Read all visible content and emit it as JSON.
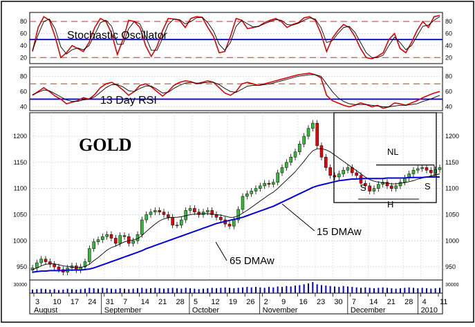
{
  "chart_data": [
    {
      "type": "line",
      "panel": "stochastic",
      "title": "Stochastic Oscillator",
      "ylim": [
        10,
        95
      ],
      "y_ticks": [
        "80",
        "60",
        "40",
        "20"
      ],
      "reference_lines": [
        80,
        20
      ],
      "center_line": 50,
      "grid": true,
      "series": [
        {
          "color": "#dd0000",
          "values": [
            30,
            70,
            88,
            82,
            55,
            20,
            28,
            40,
            35,
            30,
            45,
            70,
            85,
            80,
            60,
            25,
            50,
            82,
            80,
            70,
            40,
            22,
            38,
            65,
            85,
            84,
            82,
            70,
            85,
            88,
            87,
            70,
            55,
            28,
            30,
            55,
            85,
            82,
            68,
            70,
            72,
            78,
            82,
            85,
            80,
            70,
            75,
            78,
            86,
            88,
            82,
            60,
            30,
            52,
            65,
            75,
            70,
            55,
            35,
            20,
            18,
            22,
            28,
            50,
            60,
            35,
            28,
            45,
            65,
            80,
            70,
            88,
            90
          ]
        },
        {
          "color": "#000000",
          "values": [
            32,
            58,
            80,
            84,
            68,
            38,
            26,
            33,
            36,
            33,
            40,
            58,
            78,
            82,
            72,
            42,
            42,
            68,
            80,
            76,
            55,
            32,
            32,
            52,
            75,
            84,
            83,
            76,
            80,
            86,
            87,
            78,
            64,
            42,
            32,
            45,
            72,
            82,
            76,
            71,
            72,
            76,
            80,
            83,
            82,
            75,
            74,
            77,
            82,
            86,
            84,
            70,
            45,
            48,
            60,
            70,
            72,
            62,
            45,
            28,
            20,
            20,
            24,
            40,
            54,
            45,
            33,
            40,
            56,
            72,
            74,
            82,
            88
          ]
        }
      ]
    },
    {
      "type": "line",
      "panel": "rsi",
      "title": "13 Day RSI",
      "ylim": [
        35,
        92
      ],
      "y_ticks": [
        "80",
        "60",
        "40"
      ],
      "reference_lines": [
        70
      ],
      "center_line": 50,
      "grid": true,
      "series": [
        {
          "color": "#dd0000",
          "values": [
            55,
            60,
            65,
            60,
            54,
            50,
            44,
            46,
            48,
            52,
            50,
            56,
            65,
            70,
            72,
            68,
            62,
            55,
            60,
            68,
            70,
            66,
            60,
            54,
            60,
            68,
            72,
            74,
            73,
            70,
            72,
            74,
            72,
            65,
            58,
            55,
            60,
            70,
            72,
            70,
            68,
            70,
            72,
            74,
            76,
            78,
            80,
            82,
            83,
            84,
            82,
            78,
            55,
            48,
            45,
            42,
            40,
            42,
            45,
            43,
            40,
            42,
            38,
            40,
            45,
            44,
            42,
            45,
            48,
            52,
            55,
            58,
            60
          ]
        },
        {
          "color": "#000000",
          "values": [
            56,
            59,
            62,
            61,
            57,
            53,
            49,
            47,
            47,
            49,
            50,
            53,
            59,
            65,
            69,
            69,
            66,
            61,
            60,
            64,
            67,
            67,
            63,
            58,
            59,
            64,
            68,
            71,
            72,
            71,
            71,
            72,
            72,
            69,
            64,
            60,
            59,
            63,
            67,
            68,
            68,
            69,
            70,
            72,
            74,
            76,
            78,
            80,
            81,
            82,
            82,
            80,
            70,
            60,
            52,
            47,
            44,
            43,
            43,
            43,
            42,
            41,
            40,
            40,
            41,
            42,
            42,
            43,
            44,
            47,
            49,
            52,
            55
          ]
        }
      ]
    },
    {
      "type": "candlestick",
      "panel": "price",
      "title": "GOLD",
      "ylim": [
        925,
        1245
      ],
      "y_ticks": [
        "1200",
        "1150",
        "1100",
        "1050",
        "1000",
        "950"
      ],
      "grid": true,
      "x_ticks": [
        "3",
        "10",
        "17",
        "24",
        "31",
        "7",
        "14",
        "21",
        "28",
        "5",
        "12",
        "19",
        "26",
        "2",
        "9",
        "16",
        "23",
        "30",
        "7",
        "14",
        "21",
        "28",
        "4",
        "11"
      ],
      "months": [
        "August",
        "September",
        "October",
        "November",
        "December",
        "2010"
      ],
      "close": [
        948,
        958,
        965,
        960,
        955,
        950,
        945,
        940,
        948,
        952,
        944,
        950,
        960,
        985,
        998,
        1002,
        1008,
        1012,
        1005,
        995,
        1010,
        1008,
        995,
        1000,
        1012,
        1040,
        1050,
        1055,
        1058,
        1055,
        1050,
        1045,
        1030,
        1030,
        1040,
        1058,
        1062,
        1055,
        1050,
        1055,
        1058,
        1050,
        1045,
        1040,
        1032,
        1028,
        1040,
        1060,
        1085,
        1090,
        1095,
        1100,
        1105,
        1110,
        1108,
        1112,
        1130,
        1140,
        1150,
        1160,
        1170,
        1185,
        1200,
        1215,
        1225,
        1182,
        1160,
        1140,
        1125,
        1122,
        1128,
        1135,
        1140,
        1130,
        1125,
        1110,
        1105,
        1095,
        1100,
        1108,
        1112,
        1105,
        1100,
        1105,
        1112,
        1120,
        1128,
        1135,
        1138,
        1140,
        1135,
        1130,
        1136,
        1140
      ],
      "sma15": [
        945,
        948,
        952,
        955,
        956,
        956,
        954,
        952,
        951,
        950,
        949,
        949,
        951,
        955,
        962,
        968,
        975,
        982,
        987,
        990,
        994,
        998,
        1000,
        1002,
        1004,
        1010,
        1018,
        1025,
        1032,
        1038,
        1042,
        1044,
        1045,
        1045,
        1046,
        1048,
        1050,
        1051,
        1051,
        1052,
        1052,
        1051,
        1050,
        1049,
        1047,
        1045,
        1045,
        1048,
        1053,
        1058,
        1064,
        1070,
        1076,
        1082,
        1088,
        1093,
        1100,
        1108,
        1116,
        1124,
        1132,
        1142,
        1152,
        1163,
        1172,
        1176,
        1176,
        1174,
        1170,
        1164,
        1158,
        1152,
        1146,
        1140,
        1134,
        1128,
        1122,
        1117,
        1114,
        1112,
        1111,
        1110,
        1109,
        1109,
        1110,
        1111,
        1113,
        1115,
        1118,
        1120,
        1122,
        1124,
        1126,
        1128
      ],
      "sma65": [
        940,
        941,
        942,
        942,
        943,
        943,
        943,
        943,
        944,
        944,
        944,
        944,
        945,
        946,
        948,
        951,
        954,
        957,
        960,
        963,
        966,
        969,
        972,
        975,
        978,
        981,
        985,
        988,
        991,
        994,
        997,
        1000,
        1003,
        1006,
        1009,
        1012,
        1015,
        1018,
        1021,
        1024,
        1027,
        1030,
        1033,
        1035,
        1037,
        1039,
        1041,
        1043,
        1045,
        1048,
        1051,
        1054,
        1057,
        1060,
        1063,
        1066,
        1070,
        1074,
        1078,
        1082,
        1086,
        1090,
        1094,
        1098,
        1102,
        1105,
        1107,
        1109,
        1111,
        1113,
        1115,
        1116,
        1117,
        1118,
        1118,
        1119,
        1119,
        1119,
        1119,
        1119,
        1119,
        1120,
        1120,
        1120,
        1120,
        1120,
        1121,
        1121,
        1121,
        1121,
        1122,
        1122,
        1122,
        1122
      ],
      "annotations": [
        "15 DMAw",
        "65 DMAw",
        "NL",
        "S",
        "H",
        "S"
      ],
      "neckline": 1145
    },
    {
      "type": "bar",
      "panel": "volume",
      "y_ticks": [
        "30000"
      ],
      "values": [
        8,
        9,
        10,
        9,
        8,
        9,
        7,
        8,
        10,
        9,
        8,
        9,
        10,
        12,
        11,
        10,
        12,
        11,
        10,
        9,
        11,
        10,
        9,
        10,
        11,
        12,
        10,
        11,
        12,
        11,
        10,
        11,
        12,
        11,
        10,
        12,
        11,
        10,
        9,
        10,
        11,
        12,
        11,
        12,
        13,
        12,
        11,
        12,
        13,
        14,
        13,
        14,
        13,
        12,
        14,
        13,
        15,
        14,
        16,
        15,
        17,
        18,
        20,
        22,
        25,
        20,
        18,
        17,
        16,
        15,
        14,
        16,
        15,
        14,
        13,
        12,
        13,
        12,
        11,
        12,
        13,
        12,
        11,
        10,
        11,
        12,
        13,
        12,
        11,
        12,
        11,
        10,
        11,
        12
      ]
    }
  ]
}
